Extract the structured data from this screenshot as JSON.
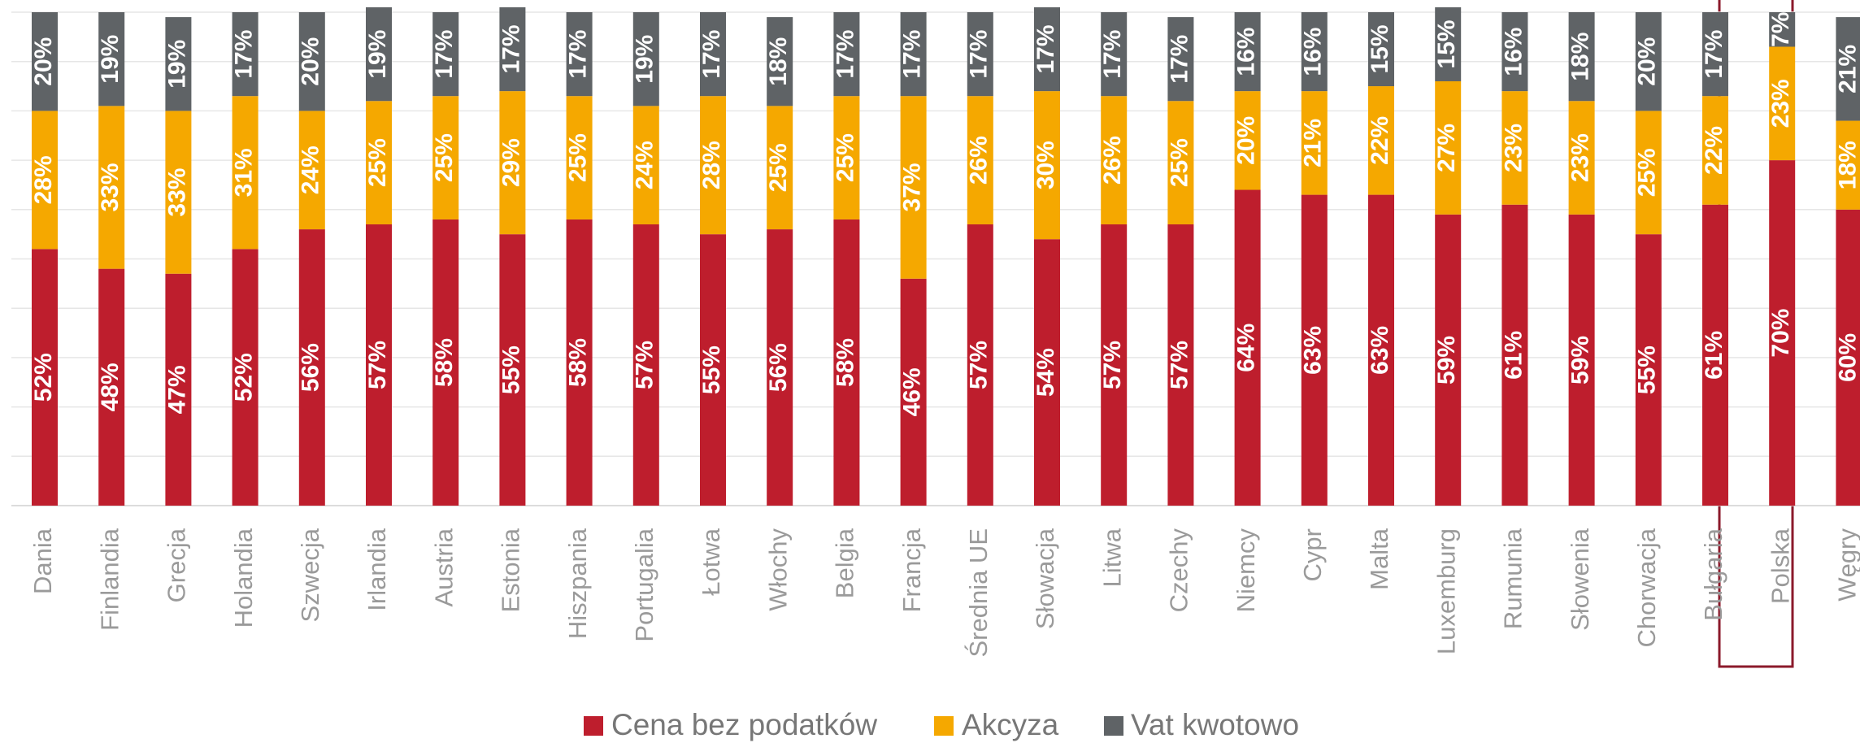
{
  "chart_data": {
    "type": "stacked_bar",
    "categories": [
      "Dania",
      "Finlandia",
      "Grecja",
      "Holandia",
      "Szwecja",
      "Irlandia",
      "Austria",
      "Estonia",
      "Hiszpania",
      "Portugalia",
      "Łotwa",
      "Włochy",
      "Belgia",
      "Francja",
      "Średnia UE",
      "Słowacja",
      "Litwa",
      "Czechy",
      "Niemcy",
      "Cypr",
      "Malta",
      "Luxemburg",
      "Rumunia",
      "Słowenia",
      "Chorwacja",
      "Bułgaria",
      "Polska",
      "Węgry"
    ],
    "series": [
      {
        "name": "Cena bez podatków",
        "color": "#be1e2d",
        "values": [
          52,
          48,
          47,
          52,
          56,
          57,
          58,
          55,
          58,
          57,
          55,
          56,
          58,
          46,
          57,
          54,
          57,
          57,
          64,
          63,
          63,
          59,
          61,
          59,
          55,
          61,
          70,
          60
        ],
        "value_labels": [
          "52%",
          "48%",
          "47%",
          "52%",
          "56%",
          "57%",
          "58%",
          "55%",
          "58%",
          "57%",
          "55%",
          "56%",
          "58%",
          "46%",
          "57%",
          "54%",
          "57%",
          "57%",
          "64%",
          "63%",
          "63%",
          "59%",
          "61%",
          "59%",
          "55%",
          "61%",
          "70%",
          "60%"
        ]
      },
      {
        "name": "Akcyza",
        "color": "#f5a800",
        "values": [
          28,
          33,
          33,
          31,
          24,
          25,
          25,
          29,
          25,
          24,
          28,
          25,
          25,
          37,
          26,
          30,
          26,
          25,
          20,
          21,
          22,
          27,
          23,
          23,
          25,
          22,
          23,
          18
        ],
        "value_labels": [
          "28%",
          "33%",
          "33%",
          "31%",
          "24%",
          "25%",
          "25%",
          "29%",
          "25%",
          "24%",
          "28%",
          "25%",
          "25%",
          "37%",
          "26%",
          "30%",
          "26%",
          "25%",
          "20%",
          "21%",
          "22%",
          "27%",
          "23%",
          "23%",
          "25%",
          "22%",
          "23%",
          "18%"
        ]
      },
      {
        "name": "Vat kwotowo",
        "color": "#5f6366",
        "values": [
          20,
          19,
          19,
          17,
          20,
          19,
          17,
          17,
          17,
          19,
          17,
          18,
          17,
          17,
          17,
          17,
          17,
          17,
          16,
          16,
          15,
          15,
          16,
          18,
          20,
          17,
          7,
          21
        ],
        "value_labels": [
          "20%",
          "19%",
          "19%",
          "17%",
          "20%",
          "19%",
          "17%",
          "17%",
          "17%",
          "19%",
          "17%",
          "18%",
          "17%",
          "17%",
          "17%",
          "17%",
          "17%",
          "17%",
          "16%",
          "16%",
          "15%",
          "15%",
          "16%",
          "18%",
          "20%",
          "17%",
          "7%",
          "21%"
        ]
      }
    ],
    "ylim": [
      0,
      100
    ],
    "yticks": [
      0,
      10,
      20,
      30,
      40,
      50,
      60,
      70,
      80,
      90,
      100
    ],
    "grid": true
  }
}
